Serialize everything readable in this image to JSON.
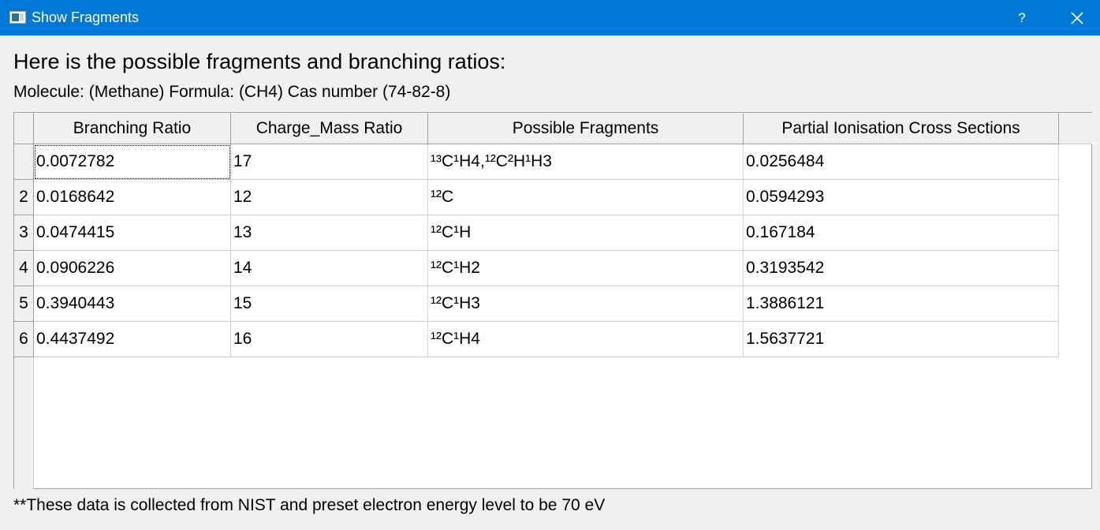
{
  "window": {
    "title": "Show Fragments",
    "help_label": "?",
    "icons": {
      "app": "app-window-icon",
      "close": "close-icon"
    }
  },
  "heading": "Here is the possible fragments and branching ratios:",
  "molecule_line": "Molecule: (Methane) Formula: (CH4) Cas number (74-82-8)",
  "table": {
    "columns": [
      "Branching Ratio",
      "Charge_Mass Ratio",
      "Possible Fragments",
      "Partial Ionisation Cross Sections"
    ],
    "row_labels": [
      "",
      "2",
      "3",
      "4",
      "5",
      "6"
    ],
    "rows": [
      [
        "0.0072782",
        "17",
        "¹³C¹H4,¹²C²H¹H3",
        "0.0256484"
      ],
      [
        "0.0168642",
        "12",
        "¹²C",
        "0.0594293"
      ],
      [
        "0.0474415",
        "13",
        "¹²C¹H",
        "0.167184"
      ],
      [
        "0.0906226",
        "14",
        "¹²C¹H2",
        "0.3193542"
      ],
      [
        "0.3940443",
        "15",
        "¹²C¹H3",
        "1.3886121"
      ],
      [
        "0.4437492",
        "16",
        "¹²C¹H4",
        "1.5637721"
      ]
    ]
  },
  "footer_note": "**These data is collected from NIST and preset electron energy level to be 70 eV"
}
